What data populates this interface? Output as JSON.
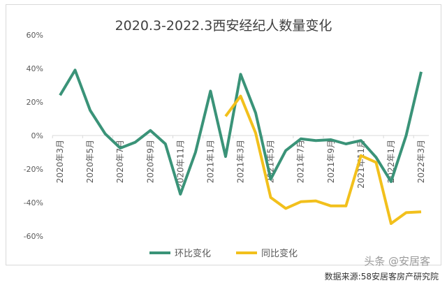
{
  "chart_data": {
    "type": "line",
    "title": "2020.3-2022.3西安经纪人数量变化",
    "x": [
      "2020年3月",
      "2020年4月",
      "2020年5月",
      "2020年6月",
      "2020年7月",
      "2020年8月",
      "2020年9月",
      "2020年10月",
      "2020年11月",
      "2020年12月",
      "2021年1月",
      "2021年2月",
      "2021年3月",
      "2021年4月",
      "2021年5月",
      "2021年6月",
      "2021年7月",
      "2021年8月",
      "2021年9月",
      "2021年10月",
      "2021年11月",
      "2021年12月",
      "2022年1月",
      "2022年2月",
      "2022年3月"
    ],
    "x_tick_labels": [
      "2020年3月",
      "2020年5月",
      "2020年7月",
      "2020年9月",
      "2020年11月",
      "2021年1月",
      "2021年3月",
      "2021年5月",
      "2021年7月",
      "2021年9月",
      "2021年11月",
      "2022年1月",
      "2022年3月"
    ],
    "ylim": [
      -60,
      60
    ],
    "y_tick_labels": [
      "60%",
      "40%",
      "20%",
      "0%",
      "-20%",
      "-40%",
      "-60%"
    ],
    "y_ticks": [
      60,
      40,
      20,
      0,
      -20,
      -40,
      -60
    ],
    "grid": false,
    "legend_position": "bottom",
    "series": [
      {
        "name": "环比变化",
        "color": "#3a9378",
        "values": [
          24,
          39,
          15,
          1,
          -7.5,
          -4,
          3,
          -5,
          -35,
          -10,
          26.5,
          -12.5,
          36.5,
          13.5,
          -26,
          -9,
          -2,
          -3,
          -2.5,
          -5,
          -3,
          -13,
          -27.5,
          0,
          38
        ]
      },
      {
        "name": "同比变化",
        "color": "#f2c01c",
        "values": [
          null,
          null,
          null,
          null,
          null,
          null,
          null,
          null,
          null,
          null,
          null,
          11.5,
          23.5,
          1.5,
          -37,
          -43.5,
          -39.5,
          -39,
          -42,
          -42,
          -12,
          -16,
          -52.5,
          -46,
          -45.5
        ]
      }
    ]
  },
  "source": "数据来源:58安居客房产研究院",
  "watermark": "头条 @安居客"
}
